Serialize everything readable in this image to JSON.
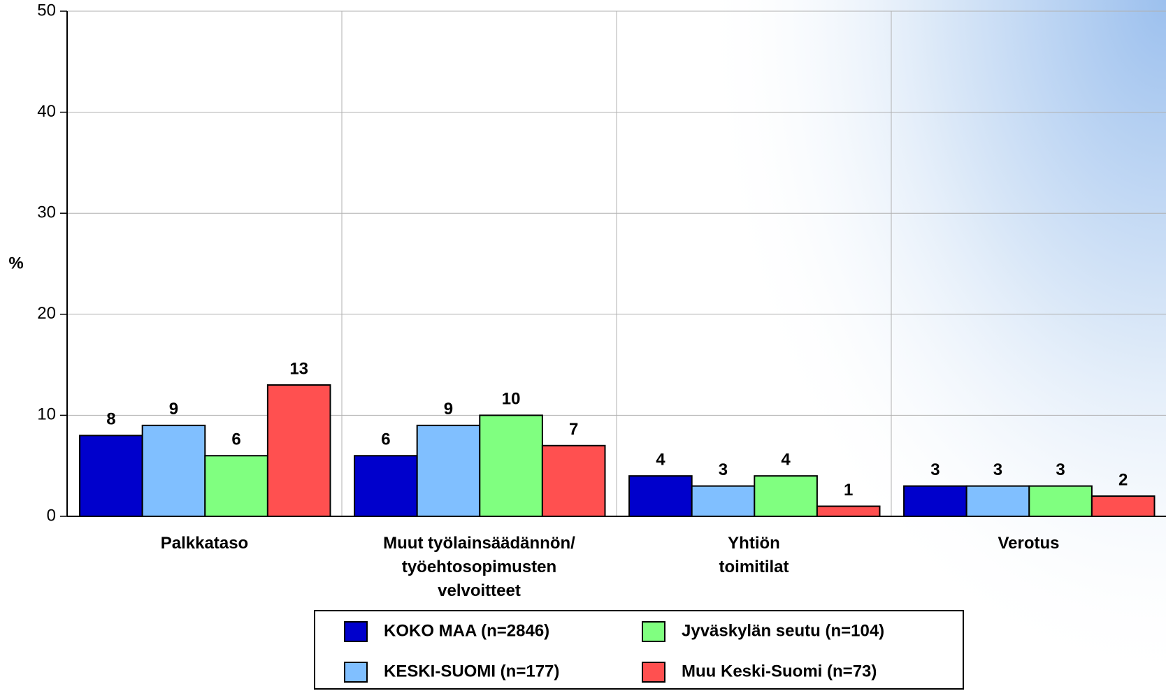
{
  "chart_data": {
    "type": "bar",
    "y_label": "%",
    "categories": [
      "Palkkataso",
      "Muut työlainsäädännön/\ntyöehtosopimusten\nvelvoitteet",
      "Yhtiön\ntoimitilat",
      "Verotus"
    ],
    "series": [
      {
        "name": "KOKO MAA (n=2846)",
        "color": "#0000cc",
        "values": [
          8,
          6,
          4,
          3
        ]
      },
      {
        "name": "KESKI-SUOMI (n=177)",
        "color": "#80bfff",
        "values": [
          9,
          9,
          3,
          3
        ]
      },
      {
        "name": "Jyväskylän seutu (n=104)",
        "color": "#80ff80",
        "values": [
          6,
          10,
          4,
          3
        ]
      },
      {
        "name": "Muu Keski-Suomi (n=73)",
        "color": "#ff5050",
        "values": [
          13,
          7,
          1,
          2
        ]
      }
    ],
    "ylim": [
      0,
      50
    ],
    "yticks": [
      0,
      10,
      20,
      30,
      40,
      50
    ],
    "grid": true
  }
}
